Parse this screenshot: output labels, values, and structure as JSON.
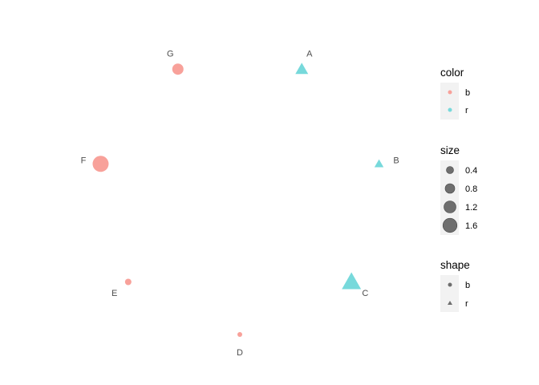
{
  "chart_data": {
    "type": "scatter",
    "layout": "circle",
    "grid": false,
    "axes_visible": false,
    "legend_position": "right",
    "nodes": [
      {
        "label": "A",
        "color": "r",
        "shape": "r",
        "size": 1.0
      },
      {
        "label": "B",
        "color": "r",
        "shape": "r",
        "size": 0.6
      },
      {
        "label": "C",
        "color": "r",
        "shape": "r",
        "size": 1.7
      },
      {
        "label": "D",
        "color": "b",
        "shape": "b",
        "size": 0.2
      },
      {
        "label": "E",
        "color": "b",
        "shape": "b",
        "size": 0.4
      },
      {
        "label": "F",
        "color": "b",
        "shape": "b",
        "size": 1.6
      },
      {
        "label": "G",
        "color": "b",
        "shape": "b",
        "size": 1.0
      }
    ],
    "colors": {
      "b": "#F8A19A",
      "r": "#77D9DB"
    },
    "legends": {
      "color": {
        "title": "color",
        "entries": [
          "b",
          "r"
        ]
      },
      "size": {
        "title": "size",
        "entries": [
          "0.4",
          "0.8",
          "1.2",
          "1.6"
        ]
      },
      "shape": {
        "title": "shape",
        "entries": [
          "b",
          "r"
        ],
        "shapes": [
          "circle",
          "triangle"
        ]
      }
    }
  }
}
